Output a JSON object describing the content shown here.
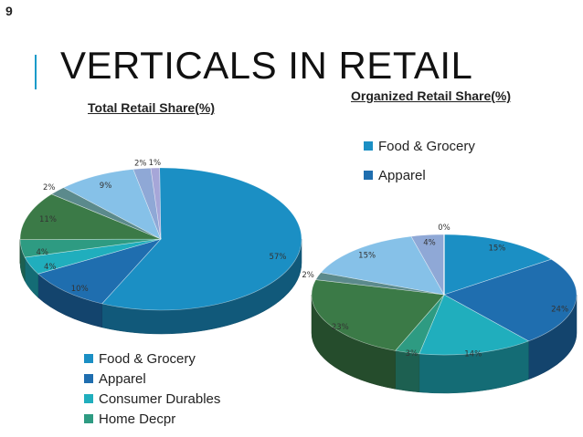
{
  "slide": {
    "number": "9",
    "title": "VERTICALS IN RETAIL"
  },
  "chart_data": [
    {
      "type": "pie",
      "title": "Total Retail Share(%)",
      "series": [
        {
          "name": "Food & Grocery",
          "value": 57,
          "label": "57%",
          "color": "#1b8fc4"
        },
        {
          "name": "Apparel",
          "value": 10,
          "label": "10%",
          "color": "#1f6eaf"
        },
        {
          "name": "Consumer Durables",
          "value": 4,
          "label": "4%",
          "color": "#20aebd"
        },
        {
          "name": "Home Decpr",
          "value": 4,
          "label": "4%",
          "color": "#2e9b82"
        },
        {
          "value": 11,
          "label": "11%",
          "color": "#3b7a47"
        },
        {
          "value": 2,
          "label": "2%",
          "color": "#5b8a8c"
        },
        {
          "value": 9,
          "label": "9%",
          "color": "#86c1e8"
        },
        {
          "value": 2,
          "label": "2%",
          "color": "#8fa8d6"
        },
        {
          "value": 1,
          "label": "1%",
          "color": "#a6a6d8"
        }
      ],
      "legend": [
        "Food & Grocery",
        "Apparel",
        "Consumer Durables",
        "Home Decpr"
      ]
    },
    {
      "type": "pie",
      "title": "Organized Retail Share(%)",
      "series": [
        {
          "name": "Food & Grocery",
          "value": 15,
          "label": "15%",
          "color": "#1b8fc4"
        },
        {
          "name": "Apparel",
          "value": 24,
          "label": "24%",
          "color": "#1f6eaf"
        },
        {
          "value": 14,
          "label": "14%",
          "color": "#20aebd"
        },
        {
          "value": 3,
          "label": "3%",
          "color": "#2e9b82"
        },
        {
          "value": 23,
          "label": "23%",
          "color": "#3b7a47"
        },
        {
          "value": 2,
          "label": "2%",
          "color": "#5b8a8c"
        },
        {
          "value": 15,
          "label": "15%",
          "color": "#86c1e8"
        },
        {
          "value": 4,
          "label": "4%",
          "color": "#8fa8d6"
        },
        {
          "value": 0,
          "label": "0%",
          "color": "#a6a6d8"
        }
      ],
      "legend": [
        "Food & Grocery",
        "Apparel"
      ]
    }
  ]
}
